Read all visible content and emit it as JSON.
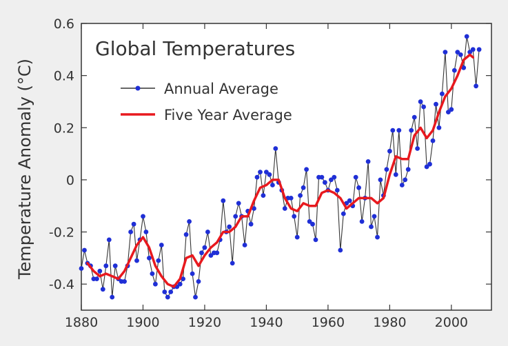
{
  "chart_data": {
    "type": "line",
    "title": "Global Temperatures",
    "ylabel": "Temperature Anomaly (°C)",
    "xlabel": "",
    "xlim": [
      1880,
      2013
    ],
    "ylim": [
      -0.5,
      0.6
    ],
    "grid": false,
    "legend_position": "top-left",
    "x_ticks": [
      1880,
      1900,
      1920,
      1940,
      1960,
      1980,
      2000
    ],
    "x_tick_labels": [
      "1880",
      "1900",
      "1920",
      "1940",
      "1960",
      "1980",
      "2000"
    ],
    "y_ticks": [
      -0.4,
      -0.2,
      0,
      0.2,
      0.4,
      0.6
    ],
    "y_tick_labels": [
      "-0.4",
      "-0.2",
      "0",
      "0.2",
      "0.4",
      "0.6"
    ],
    "series": [
      {
        "name": "Annual Average",
        "style": "line-with-markers",
        "line_color": "#333333",
        "marker_color": "#1f2fd6",
        "x": [
          1880,
          1881,
          1882,
          1883,
          1884,
          1885,
          1886,
          1887,
          1888,
          1889,
          1890,
          1891,
          1892,
          1893,
          1894,
          1895,
          1896,
          1897,
          1898,
          1899,
          1900,
          1901,
          1902,
          1903,
          1904,
          1905,
          1906,
          1907,
          1908,
          1909,
          1910,
          1911,
          1912,
          1913,
          1914,
          1915,
          1916,
          1917,
          1918,
          1919,
          1920,
          1921,
          1922,
          1923,
          1924,
          1925,
          1926,
          1927,
          1928,
          1929,
          1930,
          1931,
          1932,
          1933,
          1934,
          1935,
          1936,
          1937,
          1938,
          1939,
          1940,
          1941,
          1942,
          1943,
          1944,
          1945,
          1946,
          1947,
          1948,
          1949,
          1950,
          1951,
          1952,
          1953,
          1954,
          1955,
          1956,
          1957,
          1958,
          1959,
          1960,
          1961,
          1962,
          1963,
          1964,
          1965,
          1966,
          1967,
          1968,
          1969,
          1970,
          1971,
          1972,
          1973,
          1974,
          1975,
          1976,
          1977,
          1978,
          1979,
          1980,
          1981,
          1982,
          1983,
          1984,
          1985,
          1986,
          1987,
          1988,
          1989,
          1990,
          1991,
          1992,
          1993,
          1994,
          1995,
          1996,
          1997,
          1998,
          1999,
          2000,
          2001,
          2002,
          2003,
          2004,
          2005,
          2006,
          2007,
          2008,
          2009
        ],
        "y": [
          -0.34,
          -0.27,
          -0.32,
          -0.33,
          -0.38,
          -0.38,
          -0.35,
          -0.42,
          -0.33,
          -0.23,
          -0.45,
          -0.33,
          -0.38,
          -0.39,
          -0.39,
          -0.33,
          -0.2,
          -0.17,
          -0.31,
          -0.23,
          -0.14,
          -0.2,
          -0.3,
          -0.36,
          -0.4,
          -0.31,
          -0.25,
          -0.43,
          -0.45,
          -0.43,
          -0.41,
          -0.41,
          -0.4,
          -0.38,
          -0.21,
          -0.16,
          -0.36,
          -0.45,
          -0.39,
          -0.28,
          -0.26,
          -0.2,
          -0.29,
          -0.28,
          -0.28,
          -0.23,
          -0.08,
          -0.2,
          -0.18,
          -0.32,
          -0.14,
          -0.09,
          -0.14,
          -0.25,
          -0.12,
          -0.17,
          -0.11,
          0.01,
          0.03,
          -0.06,
          0.03,
          0.02,
          -0.02,
          0.12,
          -0.01,
          -0.04,
          -0.11,
          -0.07,
          -0.07,
          -0.14,
          -0.22,
          -0.06,
          -0.03,
          0.04,
          -0.16,
          -0.17,
          -0.23,
          0.01,
          0.01,
          -0.01,
          -0.04,
          0.0,
          0.01,
          -0.04,
          -0.27,
          -0.13,
          -0.09,
          -0.08,
          -0.1,
          0.01,
          -0.03,
          -0.16,
          -0.07,
          0.07,
          -0.18,
          -0.14,
          -0.22,
          0.0,
          -0.06,
          0.04,
          0.11,
          0.19,
          0.02,
          0.19,
          -0.02,
          0.0,
          0.04,
          0.19,
          0.24,
          0.12,
          0.3,
          0.28,
          0.05,
          0.06,
          0.15,
          0.29,
          0.2,
          0.33,
          0.49,
          0.26,
          0.27,
          0.42,
          0.49,
          0.48,
          0.43,
          0.55,
          0.49,
          0.5,
          0.36,
          0.5
        ]
      },
      {
        "name": "Five Year Average",
        "style": "line",
        "line_color": "#e8191e",
        "x": [
          1882,
          1884,
          1886,
          1888,
          1890,
          1892,
          1894,
          1896,
          1898,
          1900,
          1902,
          1904,
          1906,
          1908,
          1910,
          1912,
          1914,
          1916,
          1918,
          1920,
          1922,
          1924,
          1926,
          1928,
          1930,
          1932,
          1934,
          1936,
          1938,
          1940,
          1942,
          1944,
          1946,
          1948,
          1950,
          1952,
          1954,
          1956,
          1958,
          1960,
          1962,
          1964,
          1966,
          1968,
          1970,
          1972,
          1974,
          1976,
          1978,
          1980,
          1982,
          1984,
          1986,
          1988,
          1990,
          1992,
          1994,
          1996,
          1998,
          2000,
          2002,
          2004,
          2006,
          2007
        ],
        "y": [
          -0.32,
          -0.35,
          -0.37,
          -0.36,
          -0.37,
          -0.38,
          -0.35,
          -0.3,
          -0.25,
          -0.22,
          -0.26,
          -0.33,
          -0.37,
          -0.4,
          -0.41,
          -0.38,
          -0.3,
          -0.29,
          -0.33,
          -0.29,
          -0.26,
          -0.24,
          -0.2,
          -0.2,
          -0.18,
          -0.14,
          -0.14,
          -0.08,
          -0.03,
          -0.02,
          0.0,
          0.0,
          -0.07,
          -0.11,
          -0.12,
          -0.09,
          -0.1,
          -0.1,
          -0.05,
          -0.04,
          -0.05,
          -0.07,
          -0.11,
          -0.09,
          -0.07,
          -0.07,
          -0.07,
          -0.09,
          -0.07,
          0.02,
          0.09,
          0.08,
          0.08,
          0.17,
          0.2,
          0.16,
          0.19,
          0.26,
          0.32,
          0.35,
          0.4,
          0.46,
          0.48,
          0.47
        ]
      }
    ]
  }
}
